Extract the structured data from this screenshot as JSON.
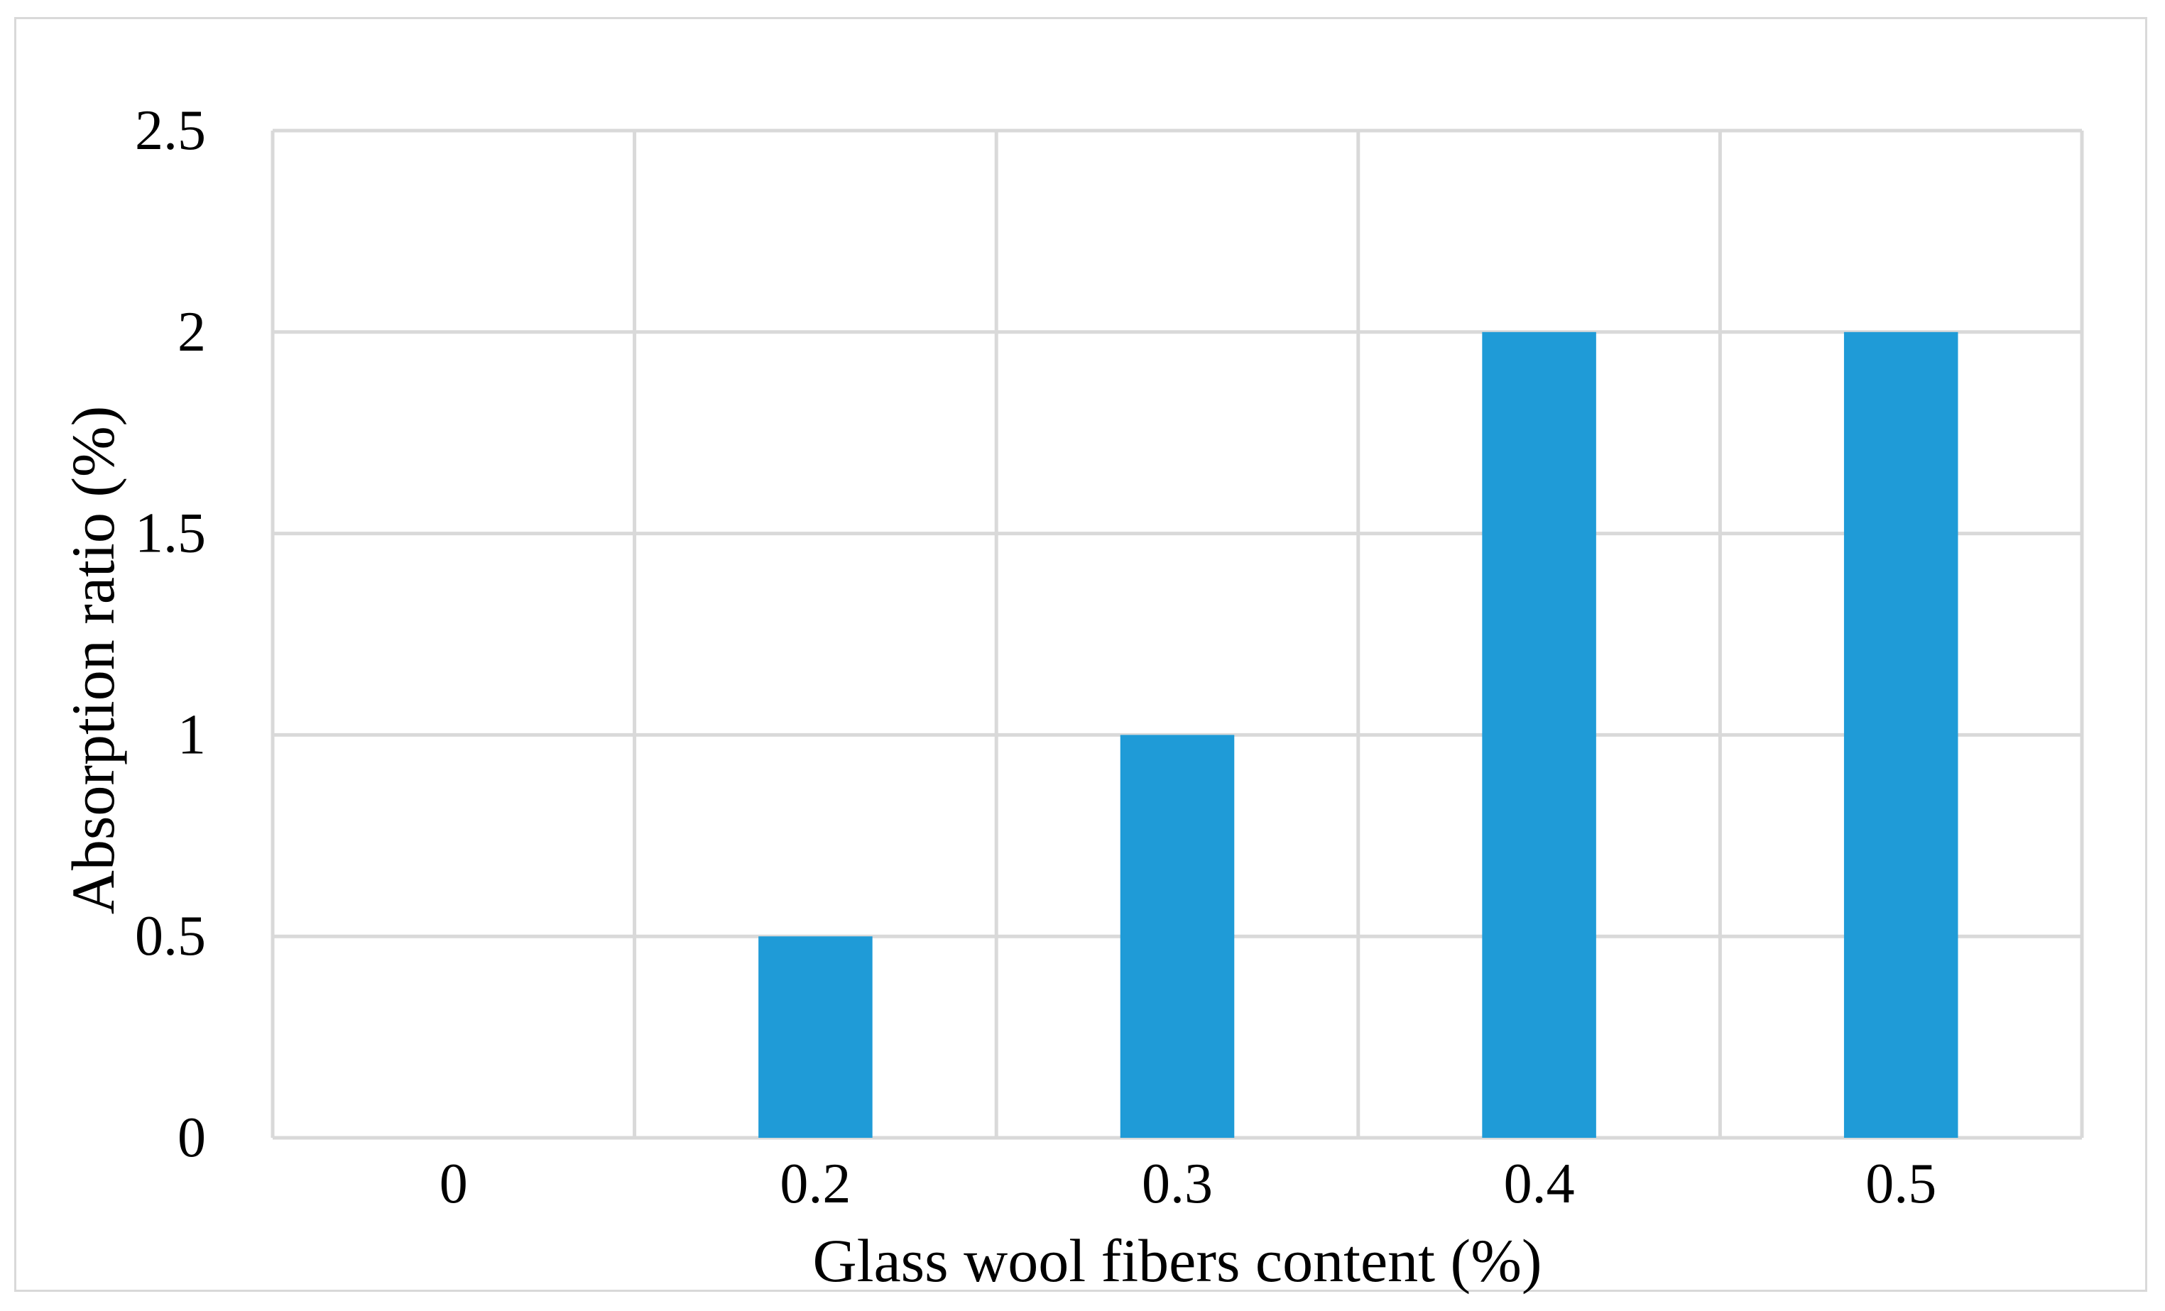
{
  "chart_data": {
    "type": "bar",
    "title": "",
    "xlabel": "Glass wool fibers content (%)",
    "ylabel": "Absorption ratio (%)",
    "categories": [
      "0",
      "0.2",
      "0.3",
      "0.4",
      "0.5"
    ],
    "values": [
      0,
      0.5,
      1,
      2,
      2
    ],
    "ylim": [
      0,
      2.5
    ],
    "yticks": [
      "0",
      "0.5",
      "1",
      "1.5",
      "2",
      "2.5"
    ],
    "grid": true,
    "bar_color": "#1f9bd7",
    "grid_color": "#d9d9d9"
  }
}
